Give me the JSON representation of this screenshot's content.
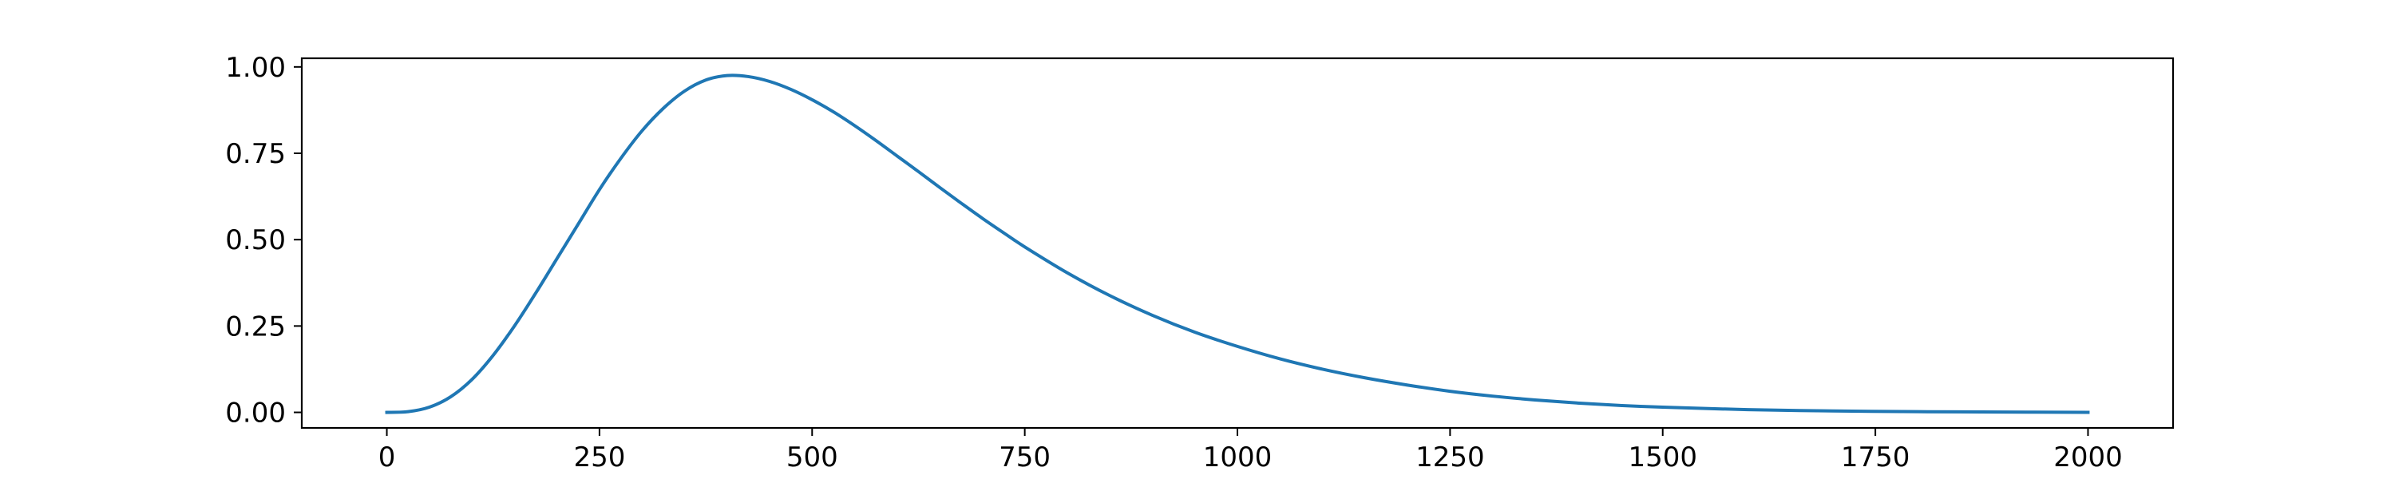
{
  "chart_data": {
    "type": "line",
    "title": "",
    "xlabel": "",
    "ylabel": "",
    "xlim": [
      -100,
      2100
    ],
    "ylim": [
      -0.045,
      1.025
    ],
    "grid": false,
    "legend": "none",
    "x_ticks": [
      0,
      250,
      500,
      750,
      1000,
      1250,
      1500,
      1750,
      2000
    ],
    "x_tick_labels": [
      "0",
      "250",
      "500",
      "750",
      "1000",
      "1250",
      "1500",
      "1750",
      "2000"
    ],
    "y_ticks": [
      0,
      0.25,
      0.5,
      0.75,
      1
    ],
    "y_tick_labels": [
      "0.00",
      "0.25",
      "0.50",
      "0.75",
      "1.00"
    ],
    "series": [
      {
        "color": "#1f77b4",
        "x": [
          0,
          25,
          50,
          75,
          100,
          125,
          150,
          175,
          200,
          225,
          250,
          275,
          300,
          325,
          350,
          375,
          400,
          425,
          450,
          475,
          500,
          525,
          550,
          575,
          600,
          625,
          650,
          675,
          700,
          725,
          750,
          800,
          850,
          900,
          950,
          1000,
          1050,
          1100,
          1150,
          1200,
          1250,
          1300,
          1350,
          1400,
          1450,
          1500,
          1600,
          1700,
          1800,
          1900,
          2000
        ],
        "y": [
          0,
          0.002,
          0.015,
          0.045,
          0.095,
          0.165,
          0.25,
          0.345,
          0.445,
          0.545,
          0.645,
          0.735,
          0.815,
          0.88,
          0.93,
          0.962,
          0.975,
          0.972,
          0.958,
          0.935,
          0.905,
          0.87,
          0.83,
          0.787,
          0.742,
          0.697,
          0.651,
          0.606,
          0.562,
          0.52,
          0.479,
          0.404,
          0.338,
          0.281,
          0.232,
          0.191,
          0.155,
          0.125,
          0.1,
          0.079,
          0.061,
          0.047,
          0.036,
          0.027,
          0.02,
          0.015,
          0.008,
          0.004,
          0.002,
          0.001,
          0
        ]
      }
    ]
  }
}
